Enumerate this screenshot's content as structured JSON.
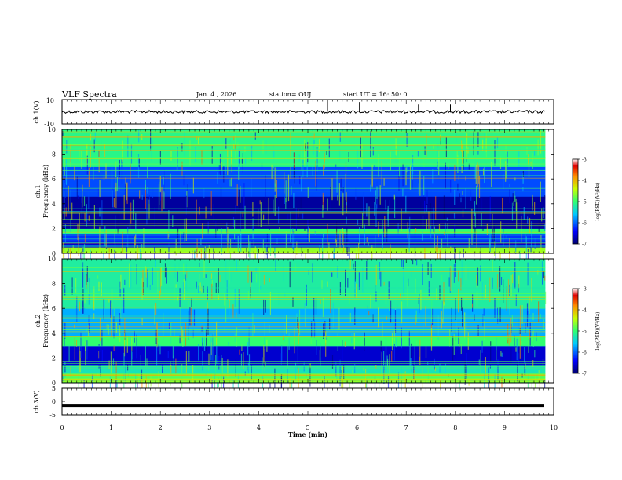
{
  "header": {
    "title": "VLF Spectra",
    "date": "Jan. 4 , 2026",
    "station": "station= OUJ",
    "start": "start UT = 16: 50: 0"
  },
  "colors": {
    "colormap": [
      "#00006e",
      "#0000ff",
      "#00c8ff",
      "#30ff70",
      "#c8ff00",
      "#ff8c00",
      "#e00000",
      "#ffffff"
    ],
    "trace": "#000000",
    "frame": "#000000"
  },
  "chart_data": [
    {
      "type": "line",
      "panel": "ch1-waveform",
      "ylabel": "ch.1(V)",
      "ylim": [
        -10,
        10
      ],
      "yticks": [
        "10",
        "-10"
      ],
      "baseline_value": 0,
      "amplitude_value": 1.2,
      "spikes": [
        {
          "t": 5.4,
          "v": 10
        },
        {
          "t": 6.05,
          "v": 8
        },
        {
          "t": 7.25,
          "v": 6
        },
        {
          "t": 7.9,
          "v": 6
        }
      ]
    },
    {
      "type": "heatmap",
      "panel": "ch1-spectrogram",
      "ylabel": "ch.1 Frequency (kHz)",
      "ylim": [
        0,
        10
      ],
      "yticks": [
        "0",
        "2",
        "4",
        "6",
        "8",
        "10"
      ],
      "xlim_min": [
        0,
        9.83
      ],
      "colorbar": {
        "label": "log(PSD)(V²/Hz)",
        "range": [
          -7,
          -3
        ],
        "ticks": [
          "-3",
          "-4",
          "-5",
          "-6",
          "-7"
        ]
      },
      "band_levels_khz": [
        {
          "from": 0,
          "to": 0.5,
          "level": -4.6
        },
        {
          "from": 0.5,
          "to": 1.0,
          "level": -6.6
        },
        {
          "from": 1.0,
          "to": 1.6,
          "level": -6.2
        },
        {
          "from": 1.6,
          "to": 2.0,
          "level": -5.0
        },
        {
          "from": 2.0,
          "to": 4.6,
          "level": -6.8
        },
        {
          "from": 4.6,
          "to": 7.0,
          "level": -6.1
        },
        {
          "from": 7.0,
          "to": 10.0,
          "level": -5.1
        }
      ]
    },
    {
      "type": "heatmap",
      "panel": "ch2-spectrogram",
      "ylabel": "ch.2 Frequency (kHz)",
      "ylim": [
        0,
        10
      ],
      "yticks": [
        "0",
        "2",
        "4",
        "6",
        "8",
        "10"
      ],
      "xlim_min": [
        0,
        9.83
      ],
      "colorbar": {
        "label": "log(PSD)(V²/Hz)",
        "range": [
          -7,
          -3
        ],
        "ticks": [
          "-3",
          "-4",
          "-5",
          "-6",
          "-7"
        ]
      },
      "band_levels_khz": [
        {
          "from": 0,
          "to": 0.8,
          "level": -4.8
        },
        {
          "from": 0.8,
          "to": 1.4,
          "level": -5.3
        },
        {
          "from": 1.4,
          "to": 3.0,
          "level": -6.6
        },
        {
          "from": 3.0,
          "to": 3.8,
          "level": -5.0
        },
        {
          "from": 3.8,
          "to": 6.0,
          "level": -5.7
        },
        {
          "from": 6.0,
          "to": 10.0,
          "level": -5.2
        }
      ]
    },
    {
      "type": "line",
      "panel": "ch3-waveform",
      "ylabel": "ch.3(V)",
      "ylim": [
        -5,
        5
      ],
      "yticks": [
        "5",
        "0",
        "-5"
      ],
      "baseline_value": -1.5
    }
  ],
  "xaxis": {
    "label": "Time (min)",
    "ticks": [
      "0",
      "1",
      "2",
      "3",
      "4",
      "5",
      "6",
      "7",
      "8",
      "9",
      "10"
    ],
    "range": [
      0,
      10
    ]
  }
}
